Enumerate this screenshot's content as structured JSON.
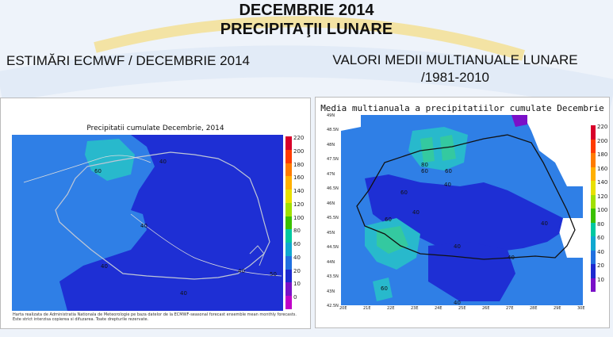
{
  "header": {
    "title_line1": "DECEMBRIE 2014",
    "title_line2": "PRECIPITAŢII LUNARE"
  },
  "left": {
    "subtitle": "ESTIMĂRI ECMWF / DECEMBRIE 2014",
    "map_title": "Precipitatii cumulate Decembrie, 2014",
    "credit": "Harta realizata de Administratia Nationala de Meteorologie pe baza datelor de la ECMWF-seasonal forecast ensemble mean monthly forecasts. Este strict interzisa copierea si difuzarea. Toate drepturile rezervate.",
    "contour_labels": [
      "60",
      "40",
      "40",
      "40",
      "40",
      "50",
      "40",
      "40"
    ]
  },
  "right": {
    "subtitle_line1": "VALORI MEDII MULTIANUALE LUNARE",
    "subtitle_line2": "/1981-2010",
    "map_title": "Media multianuala a precipitatiilor cumulate Decembrie",
    "contour_labels": [
      "80",
      "60",
      "60",
      "40",
      "60",
      "40",
      "60",
      "40",
      "40",
      "40",
      "60",
      "40"
    ],
    "lat_ticks": [
      "49N",
      "48.5N",
      "48N",
      "47.5N",
      "47N",
      "46.5N",
      "46N",
      "45.5N",
      "45N",
      "44.5N",
      "44N",
      "43.5N",
      "43N",
      "42.5N"
    ],
    "lon_ticks": [
      "20E",
      "21E",
      "22E",
      "23E",
      "24E",
      "25E",
      "26E",
      "27E",
      "28E",
      "29E",
      "30E"
    ]
  },
  "legend": {
    "values": [
      "220",
      "200",
      "180",
      "160",
      "140",
      "120",
      "100",
      "80",
      "60",
      "40",
      "20",
      "10",
      "0"
    ],
    "colors": [
      "#d8002a",
      "#ff3b00",
      "#ff7b00",
      "#ffb000",
      "#e8e000",
      "#a0e000",
      "#3ac000",
      "#00c8a0",
      "#10a8d0",
      "#2070e0",
      "#1d2ad0",
      "#7a10c8",
      "#c000c8"
    ],
    "right_values": [
      "220",
      "200",
      "180",
      "160",
      "140",
      "120",
      "100",
      "80",
      "60",
      "40",
      "20",
      "10"
    ]
  },
  "colors": {
    "blue_dark": "#1e2fd4",
    "blue_mid": "#2f7fe6",
    "teal": "#28b9cc",
    "green": "#34c9a0"
  }
}
